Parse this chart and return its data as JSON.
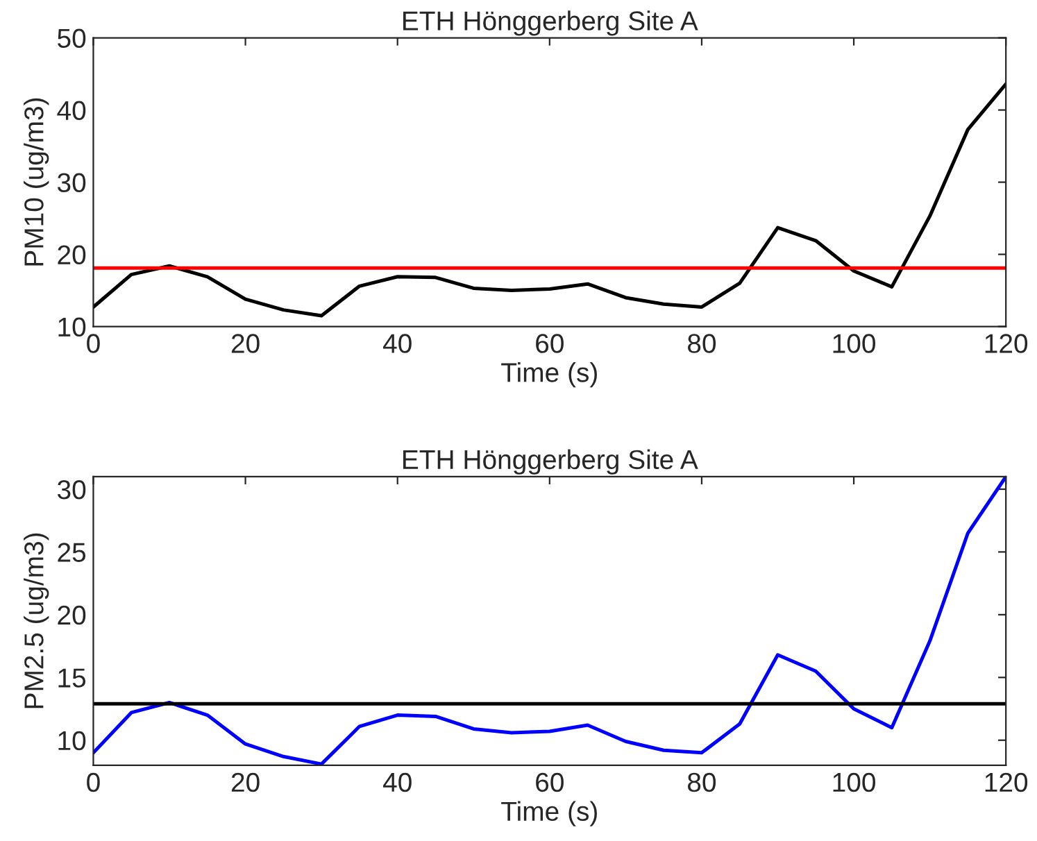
{
  "chart_data": [
    {
      "type": "line",
      "title": "ETH Hönggerberg Site A",
      "xlabel": "Time (s)",
      "ylabel": "PM10 (ug/m3)",
      "x": [
        0,
        5,
        10,
        15,
        20,
        25,
        30,
        35,
        40,
        45,
        50,
        55,
        60,
        65,
        70,
        75,
        80,
        85,
        90,
        95,
        100,
        105,
        110,
        115,
        120
      ],
      "series": [
        {
          "color": "#000000",
          "values": [
            12.7,
            17.2,
            18.4,
            16.9,
            13.8,
            12.3,
            11.5,
            15.6,
            16.9,
            16.8,
            15.3,
            15.0,
            15.2,
            15.9,
            14.0,
            13.1,
            12.7,
            16.0,
            23.7,
            21.9,
            17.7,
            15.5,
            25.3,
            37.3,
            43.6
          ]
        }
      ],
      "ref_lines": [
        {
          "axis": "y",
          "value": 18.1,
          "color": "#ff0000"
        }
      ],
      "xlim": [
        0,
        120
      ],
      "xticks": [
        0,
        20,
        40,
        60,
        80,
        100,
        120
      ],
      "ylim": [
        10,
        50
      ],
      "yticks": [
        10,
        20,
        30,
        40,
        50
      ],
      "grid": false
    },
    {
      "type": "line",
      "title": "ETH Hönggerberg Site A",
      "xlabel": "Time (s)",
      "ylabel": "PM2.5 (ug/m3)",
      "x": [
        0,
        5,
        10,
        15,
        20,
        25,
        30,
        35,
        40,
        45,
        50,
        55,
        60,
        65,
        70,
        75,
        80,
        85,
        90,
        95,
        100,
        105,
        110,
        115,
        120
      ],
      "series": [
        {
          "color": "#0000ff",
          "values": [
            9.0,
            12.2,
            13.0,
            12.0,
            9.7,
            8.7,
            8.1,
            11.1,
            12.0,
            11.9,
            10.9,
            10.6,
            10.7,
            11.2,
            9.9,
            9.2,
            9.0,
            11.3,
            16.8,
            15.5,
            12.5,
            11.0,
            17.9,
            26.5,
            31.0
          ]
        }
      ],
      "ref_lines": [
        {
          "axis": "y",
          "value": 12.9,
          "color": "#000000"
        }
      ],
      "xlim": [
        0,
        120
      ],
      "xticks": [
        0,
        20,
        40,
        60,
        80,
        100,
        120
      ],
      "ylim": [
        8,
        31
      ],
      "yticks": [
        10,
        15,
        20,
        25,
        30
      ],
      "grid": false
    }
  ]
}
